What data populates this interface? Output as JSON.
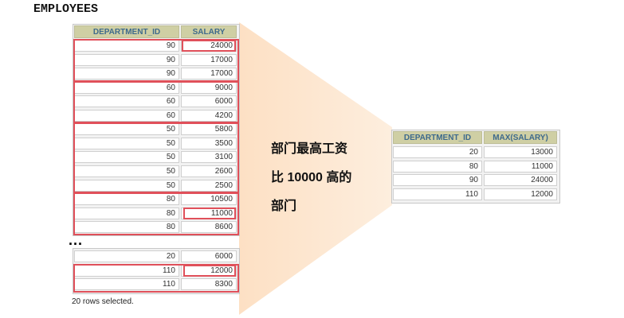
{
  "title": "EMPLOYEES",
  "employees": {
    "headers": [
      "DEPARTMENT_ID",
      "SALARY"
    ],
    "rows": [
      [
        "90",
        "24000"
      ],
      [
        "90",
        "17000"
      ],
      [
        "90",
        "17000"
      ],
      [
        "60",
        "9000"
      ],
      [
        "60",
        "6000"
      ],
      [
        "60",
        "4200"
      ],
      [
        "50",
        "5800"
      ],
      [
        "50",
        "3500"
      ],
      [
        "50",
        "3100"
      ],
      [
        "50",
        "2600"
      ],
      [
        "50",
        "2500"
      ],
      [
        "80",
        "10500"
      ],
      [
        "80",
        "11000"
      ],
      [
        "80",
        "8600"
      ]
    ],
    "ellipsis": "...",
    "rows_tail": [
      [
        "20",
        "6000"
      ],
      [
        "110",
        "12000"
      ],
      [
        "110",
        "8300"
      ]
    ],
    "footer": "20 rows selected."
  },
  "caption": [
    "部门最高工资",
    "比 10000 高的",
    "部门"
  ],
  "result": {
    "headers": [
      "DEPARTMENT_ID",
      "MAX(SALARY)"
    ],
    "rows": [
      [
        "20",
        "13000"
      ],
      [
        "80",
        "11000"
      ],
      [
        "90",
        "24000"
      ],
      [
        "110",
        "12000"
      ]
    ]
  },
  "colors": {
    "highlight": "#e0505a",
    "funnel": "#fde0c4",
    "header_bg": "#cfcfa4",
    "header_text": "#3e6a8c"
  }
}
